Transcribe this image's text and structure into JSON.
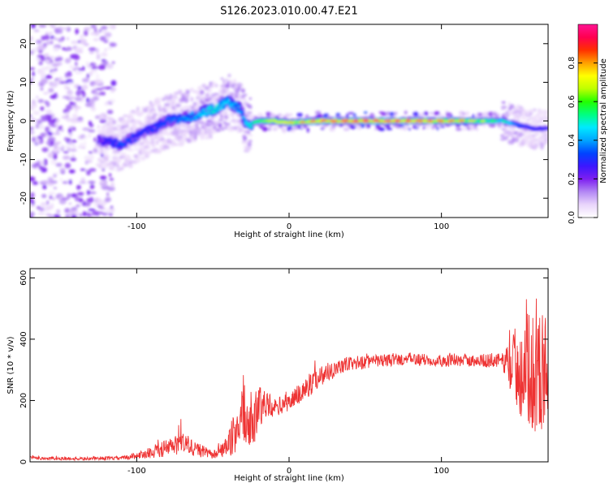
{
  "title": "S126.2023.010.00.47.E21",
  "chart_data": [
    {
      "type": "heatmap",
      "xlabel": "Height of straight line (km)",
      "ylabel": "Frequency (Hz)",
      "xlim": [
        -170,
        170
      ],
      "ylim": [
        -25,
        25
      ],
      "xticks": [
        -100,
        0,
        100
      ],
      "yticks": [
        -20,
        -10,
        0,
        10,
        20
      ],
      "colorbar": {
        "label": "Normalized spectral amplitude",
        "range": [
          0,
          1
        ],
        "ticks": [
          0.0,
          0.2,
          0.4,
          0.6,
          0.8
        ],
        "colormap": [
          "#ffffff",
          "#e9d5fb",
          "#b388f4",
          "#7d1ff0",
          "#3b17ff",
          "#0044ff",
          "#00a6ff",
          "#00eaff",
          "#00ff80",
          "#22ff00",
          "#bfff00",
          "#ffff00",
          "#ffa000",
          "#ff3000",
          "#ff0050",
          "#ff1493"
        ]
      },
      "ridge": {
        "x": [
          -125,
          -110,
          -95,
          -80,
          -65,
          -50,
          -40,
          -32,
          -28,
          -20,
          -10,
          0,
          20,
          50,
          80,
          110,
          140,
          150,
          160,
          170
        ],
        "freq": [
          -5,
          -6,
          -3,
          0,
          1,
          3,
          5,
          3,
          -1,
          0,
          0,
          -0.5,
          0,
          0,
          0,
          0,
          0,
          -1,
          -2,
          -2
        ],
        "amplitude": [
          0.25,
          0.35,
          0.3,
          0.35,
          0.4,
          0.5,
          0.45,
          0.4,
          0.45,
          0.6,
          0.7,
          0.75,
          0.9,
          0.95,
          0.9,
          0.85,
          0.55,
          0.35,
          0.3,
          0.3
        ]
      },
      "noise_region": {
        "x_range": [
          -170,
          -115
        ],
        "y_range": [
          -25,
          25
        ],
        "amplitude": 0.15
      }
    },
    {
      "type": "line",
      "xlabel": "Height of straight line (km)",
      "ylabel": "SNR (10 * v/v)",
      "xlim": [
        -170,
        170
      ],
      "ylim": [
        0,
        630
      ],
      "xticks": [
        -100,
        0,
        100
      ],
      "yticks": [
        0,
        200,
        400,
        600
      ],
      "color": "#ee3333",
      "series": [
        {
          "x": [
            -170,
            -140,
            -110,
            -95,
            -80,
            -70,
            -60,
            -50,
            -40,
            -35,
            -30,
            -27,
            -23,
            -20,
            -15,
            -10,
            0,
            10,
            20,
            30,
            40,
            60,
            80,
            100,
            120,
            140,
            150,
            160,
            170
          ],
          "baseline": [
            12,
            10,
            12,
            25,
            45,
            60,
            40,
            22,
            50,
            100,
            180,
            100,
            130,
            180,
            190,
            175,
            195,
            235,
            280,
            305,
            320,
            330,
            335,
            330,
            330,
            330,
            310,
            300,
            290
          ],
          "amplitude": [
            6,
            5,
            6,
            14,
            30,
            40,
            25,
            12,
            35,
            80,
            110,
            60,
            80,
            90,
            40,
            30,
            30,
            40,
            35,
            30,
            25,
            20,
            20,
            20,
            20,
            25,
            150,
            200,
            200
          ]
        }
      ]
    }
  ]
}
